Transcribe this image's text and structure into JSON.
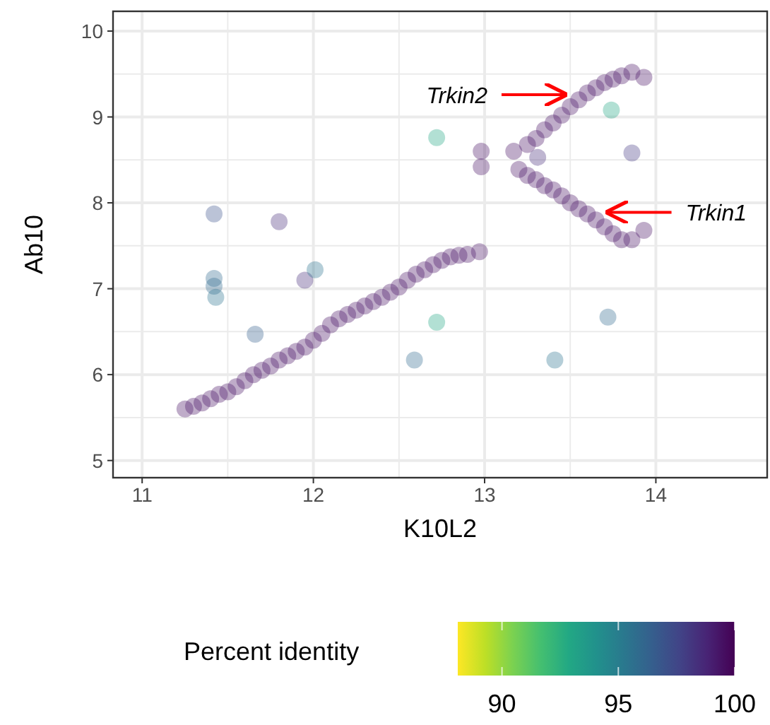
{
  "chart_data": {
    "type": "scatter",
    "xlabel": "K10L2",
    "ylabel": "Ab10",
    "clabel": "Percent identity",
    "x": [
      11.25,
      11.3,
      11.35,
      11.4,
      11.45,
      11.5,
      11.55,
      11.6,
      11.65,
      11.7,
      11.75,
      11.8,
      11.85,
      11.9,
      11.95,
      12.0,
      12.05,
      12.1,
      12.15,
      12.2,
      12.25,
      12.3,
      12.35,
      12.4,
      12.45,
      12.5,
      12.55,
      12.6,
      12.65,
      12.7,
      12.75,
      12.8,
      12.85,
      12.9,
      12.97,
      13.17,
      13.25,
      13.3,
      13.35,
      13.4,
      13.45,
      13.5,
      13.55,
      13.6,
      13.65,
      13.7,
      13.75,
      13.8,
      13.86,
      13.93,
      13.2,
      13.25,
      13.3,
      13.35,
      13.4,
      13.45,
      13.5,
      13.55,
      13.6,
      13.65,
      13.7,
      13.75,
      13.8,
      13.86,
      13.93,
      12.98,
      12.98,
      11.42,
      11.8,
      11.42,
      11.42,
      11.43,
      11.66,
      11.95,
      12.01,
      12.72,
      12.72,
      12.59,
      13.31,
      13.74,
      13.86,
      13.72,
      13.41
    ],
    "values": [
      5.6,
      5.63,
      5.67,
      5.72,
      5.77,
      5.8,
      5.86,
      5.93,
      6.0,
      6.05,
      6.1,
      6.17,
      6.22,
      6.27,
      6.32,
      6.4,
      6.48,
      6.58,
      6.65,
      6.7,
      6.75,
      6.8,
      6.85,
      6.9,
      6.96,
      7.02,
      7.1,
      7.17,
      7.22,
      7.28,
      7.33,
      7.37,
      7.39,
      7.4,
      7.43,
      8.6,
      8.68,
      8.75,
      8.85,
      8.93,
      9.02,
      9.12,
      9.2,
      9.28,
      9.34,
      9.4,
      9.44,
      9.48,
      9.52,
      9.46,
      8.39,
      8.32,
      8.27,
      8.2,
      8.15,
      8.08,
      8.0,
      7.93,
      7.87,
      7.8,
      7.72,
      7.64,
      7.57,
      7.57,
      7.68,
      8.6,
      8.42,
      7.87,
      7.78,
      7.12,
      7.03,
      6.9,
      6.47,
      7.1,
      7.22,
      8.76,
      6.61,
      6.17,
      8.53,
      9.08,
      8.58,
      6.67,
      6.17
    ],
    "cvalues": [
      99.5,
      99.5,
      99.5,
      99.5,
      99.5,
      99.5,
      99.5,
      99.5,
      99.5,
      99.5,
      99.5,
      99.5,
      99.5,
      99.5,
      99.5,
      99.5,
      99.5,
      99.5,
      99.5,
      99.5,
      99.5,
      99.5,
      99.5,
      99.5,
      99.5,
      99.5,
      99.5,
      99.5,
      99.5,
      99.5,
      99.5,
      99.5,
      99.5,
      99.5,
      99.5,
      99.5,
      99.5,
      99.5,
      99.5,
      99.5,
      99.5,
      99.5,
      99.5,
      99.5,
      99.5,
      99.5,
      99.5,
      99.5,
      99.5,
      99.5,
      99.5,
      99.5,
      99.5,
      99.5,
      99.5,
      99.5,
      99.5,
      99.5,
      99.5,
      99.5,
      99.5,
      99.5,
      99.5,
      99.5,
      99.5,
      99.5,
      99.5,
      97,
      98.5,
      96,
      96,
      95.5,
      96.5,
      98.5,
      95.5,
      93,
      93,
      96,
      98.5,
      93,
      98,
      96,
      95.5
    ],
    "xlim": [
      10.83,
      14.65
    ],
    "xticks": [
      11,
      12,
      13,
      14
    ],
    "ylim": [
      4.8,
      10.23
    ],
    "yticks": [
      5,
      6,
      7,
      8,
      9,
      10
    ],
    "clim": [
      88.1,
      100
    ],
    "cticks": [
      90,
      95,
      100
    ],
    "grid": true,
    "marker": "circle",
    "annotations": [
      {
        "text": "Trkin2",
        "x": 13.47,
        "y": 9.26
      },
      {
        "text": "Trkin1",
        "x": 13.72,
        "y": 7.89
      }
    ]
  }
}
